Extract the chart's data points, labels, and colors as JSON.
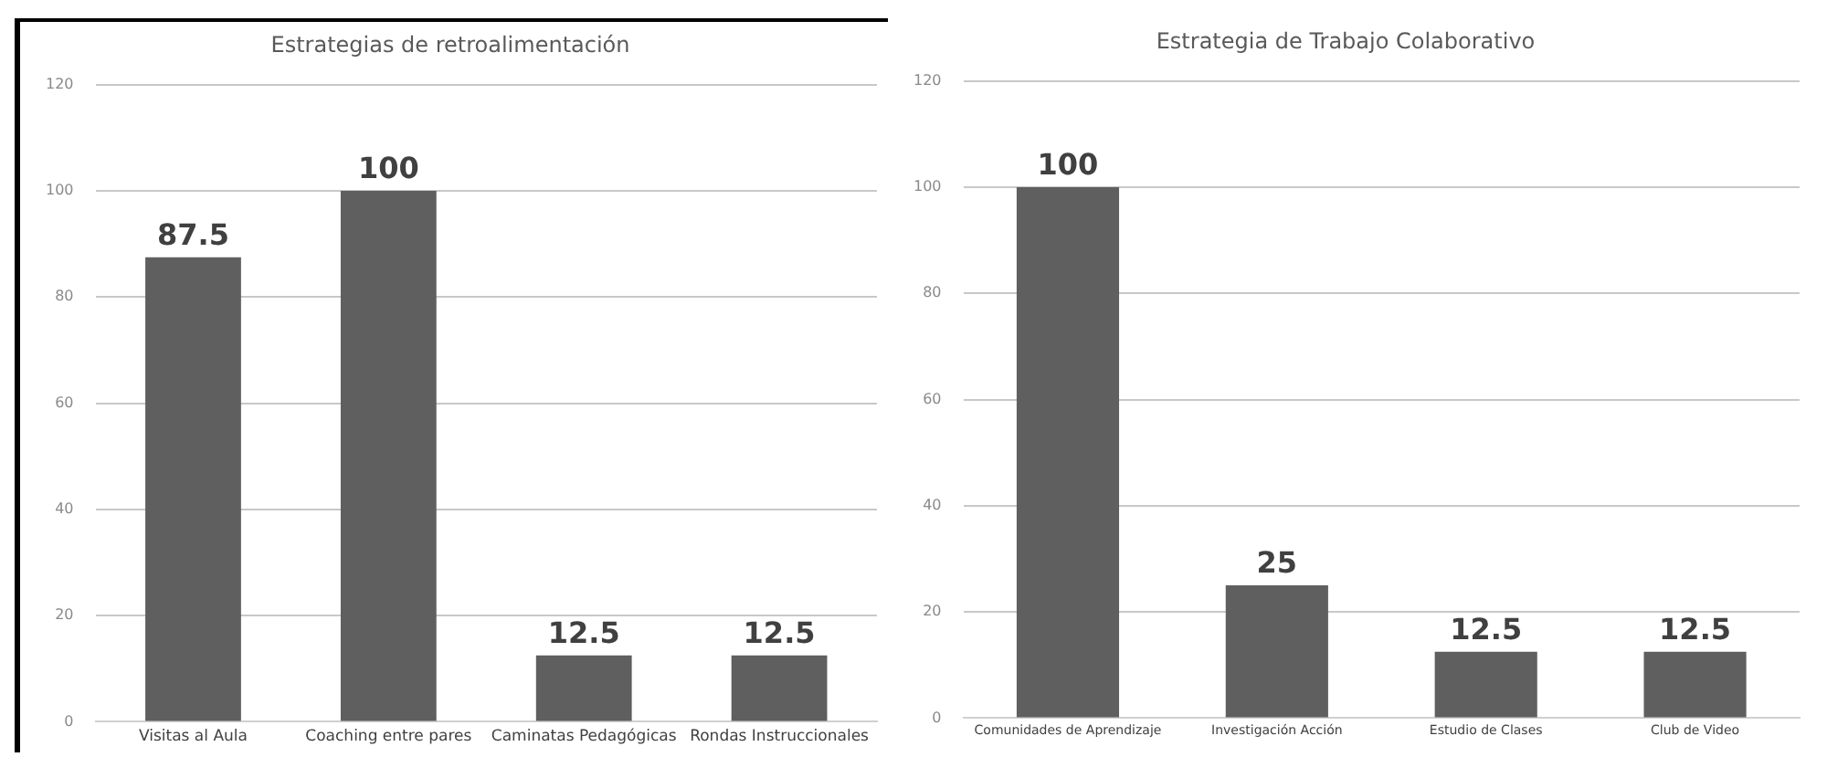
{
  "chart_data": [
    {
      "type": "bar",
      "title": "Estrategias de retroalimentación",
      "categories": [
        "Visitas al Aula",
        "Coaching entre pares",
        "Caminatas Pedagógicas",
        "Rondas Instruccionales"
      ],
      "values": [
        87.5,
        100,
        12.5,
        12.5
      ],
      "color": "#5f5f5f",
      "ylim": [
        0,
        120
      ],
      "yticks": [
        0,
        20,
        40,
        60,
        80,
        100,
        120
      ],
      "grid": "y",
      "data_labels": true
    },
    {
      "type": "bar",
      "title": "Estrategia de Trabajo Colaborativo",
      "categories": [
        "Comunidades de Aprendizaje",
        "Investigación Acción",
        "Estudio de Clases",
        "Club de Video"
      ],
      "values": [
        100,
        25,
        12.5,
        12.5
      ],
      "color": "#5f5f5f",
      "ylim": [
        0,
        120
      ],
      "yticks": [
        0,
        20,
        40,
        60,
        80,
        100,
        120
      ],
      "grid": "y",
      "data_labels": true
    }
  ]
}
